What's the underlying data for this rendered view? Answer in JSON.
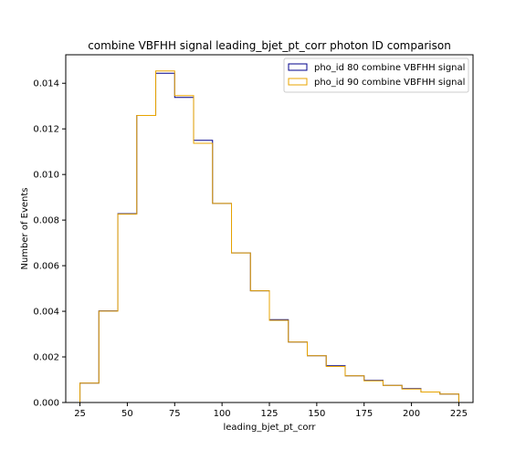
{
  "chart_data": {
    "type": "histogram",
    "title": "combine VBFHH signal leading_bjet_pt_corr photon ID comparison",
    "xlabel": "leading_bjet_pt_corr",
    "ylabel": "Number of Events",
    "xlim": [
      17.5,
      232.5
    ],
    "ylim": [
      0.0,
      0.01525
    ],
    "xticks": [
      25,
      50,
      75,
      100,
      125,
      150,
      175,
      200,
      225
    ],
    "yticks": [
      0.0,
      0.002,
      0.004,
      0.006,
      0.008,
      0.01,
      0.012,
      0.014
    ],
    "ytick_labels": [
      "0.000",
      "0.002",
      "0.004",
      "0.006",
      "0.008",
      "0.010",
      "0.012",
      "0.014"
    ],
    "grid": false,
    "legend_position": "top-right",
    "bin_edges": [
      25,
      35,
      45,
      55,
      65,
      75,
      85,
      95,
      105,
      115,
      125,
      135,
      145,
      155,
      165,
      175,
      185,
      195,
      205,
      215,
      225
    ],
    "series": [
      {
        "name": "pho_id 80 combine VBFHH signal",
        "color": "#00008b",
        "values": [
          0.00085,
          0.00402,
          0.00828,
          0.01259,
          0.01444,
          0.01338,
          0.0115,
          0.00873,
          0.00656,
          0.0049,
          0.00363,
          0.00265,
          0.00205,
          0.00161,
          0.00117,
          0.00097,
          0.00075,
          0.00061,
          0.00046,
          0.00037
        ]
      },
      {
        "name": "pho_id 90 combine VBFHH signal",
        "color": "#e8a400",
        "values": [
          0.00085,
          0.00401,
          0.00826,
          0.01259,
          0.01454,
          0.01346,
          0.01137,
          0.00873,
          0.00656,
          0.0049,
          0.0036,
          0.00265,
          0.00205,
          0.00158,
          0.00117,
          0.00095,
          0.00075,
          0.00059,
          0.00046,
          0.00037
        ]
      }
    ]
  }
}
